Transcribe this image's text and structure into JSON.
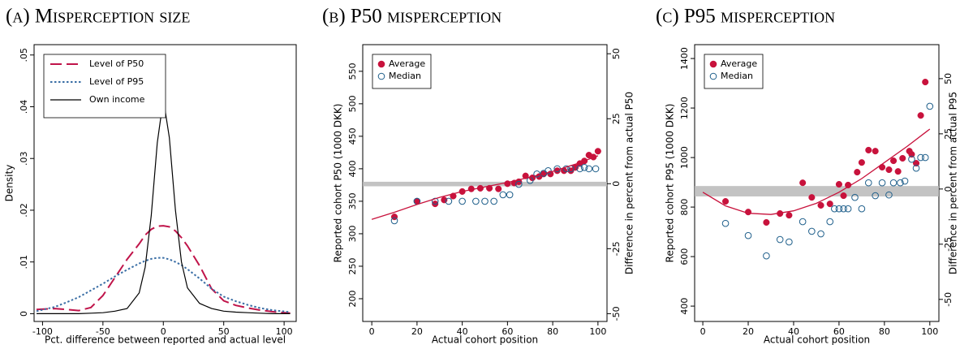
{
  "chart_data": [
    {
      "type": "line",
      "title": "(a) Misperception size",
      "xlabel": "Pct. difference between reported and actual level",
      "ylabel": "Density",
      "x": [
        -105,
        -90,
        -80,
        -70,
        -60,
        -50,
        -40,
        -30,
        -20,
        -15,
        -10,
        -5,
        0,
        5,
        10,
        15,
        20,
        30,
        40,
        50,
        60,
        70,
        80,
        90,
        105
      ],
      "series": [
        {
          "name": "Level of P50",
          "color": "#c0144a",
          "style": "long-dash",
          "values": [
            0.0008,
            0.001,
            0.0008,
            0.0006,
            0.0012,
            0.0035,
            0.007,
            0.0105,
            0.0135,
            0.0152,
            0.0163,
            0.0169,
            0.017,
            0.0168,
            0.016,
            0.0147,
            0.0131,
            0.0093,
            0.0048,
            0.0025,
            0.0016,
            0.0011,
            0.0007,
            0.0004,
            0.0001
          ]
        },
        {
          "name": "Level of P95",
          "color": "#3a6ea5",
          "style": "dotted",
          "values": [
            0.0005,
            0.0013,
            0.0022,
            0.0032,
            0.0045,
            0.0058,
            0.0072,
            0.0085,
            0.0097,
            0.0102,
            0.0106,
            0.0108,
            0.0108,
            0.0105,
            0.01,
            0.0094,
            0.0086,
            0.0068,
            0.0048,
            0.0033,
            0.0024,
            0.0017,
            0.0011,
            0.0007,
            0.0003
          ]
        },
        {
          "name": "Own income",
          "color": "#000000",
          "style": "solid",
          "values": [
            0,
            0,
            0,
            0,
            0.0001,
            0.0002,
            0.0005,
            0.001,
            0.004,
            0.009,
            0.019,
            0.033,
            0.0415,
            0.034,
            0.02,
            0.01,
            0.005,
            0.002,
            0.001,
            0.0005,
            0.0003,
            0.0002,
            0.0001,
            0,
            0
          ]
        }
      ],
      "xlim": [
        -107,
        110
      ],
      "xticks": [
        -100,
        -50,
        0,
        50,
        100
      ],
      "ylim": [
        -0.0015,
        0.052
      ],
      "yticks": [
        0,
        {
          "value": 0.01,
          "label": ".01"
        },
        {
          "value": 0.02,
          "label": ".02"
        },
        {
          "value": 0.03,
          "label": ".03"
        },
        {
          "value": 0.04,
          "label": ".04"
        },
        {
          "value": 0.05,
          "label": ".05"
        }
      ],
      "legend": "top-left"
    },
    {
      "type": "scatter",
      "title": "(b) P50 misperception",
      "xlabel": "Actual cohort position",
      "ylabel": "Reported cohort P50 (1000 DKK)",
      "y2label": "Difference in percent from actual P50",
      "series": [
        {
          "name": "Average",
          "color": "#c8123c",
          "marker": "filled",
          "x": [
            10,
            20,
            28,
            32,
            36,
            40,
            44,
            48,
            52,
            56,
            60,
            63,
            65,
            68,
            71,
            74,
            76,
            79,
            82,
            85,
            88,
            90,
            92,
            94,
            96,
            98,
            100
          ],
          "values": [
            326,
            350,
            346,
            352,
            358,
            365,
            369,
            370,
            370,
            369,
            377,
            378,
            380,
            389,
            386,
            388,
            392,
            392,
            397,
            397,
            397,
            402,
            408,
            412,
            421,
            418,
            427
          ]
        },
        {
          "name": "Median",
          "color": "#1f5f8b",
          "marker": "hollow",
          "x": [
            10,
            20,
            28,
            34,
            40,
            46,
            50,
            54,
            58,
            61,
            65,
            70,
            73,
            76,
            78,
            82,
            86,
            88,
            92,
            94,
            96,
            99
          ],
          "values": [
            320,
            350,
            350,
            350,
            350,
            350,
            350,
            350,
            360,
            360,
            376,
            382,
            392,
            393,
            397,
            400,
            400,
            400,
            400,
            402,
            400,
            400
          ]
        }
      ],
      "fit": {
        "color": "#c8123c",
        "x": [
          0,
          10,
          20,
          30,
          40,
          50,
          60,
          70,
          80,
          90,
          100
        ],
        "values": [
          322,
          333,
          345,
          356,
          365,
          372,
          379,
          387,
          396,
          407,
          420
        ]
      },
      "reference_band": [
        373,
        380
      ],
      "xlim": [
        -4,
        104
      ],
      "xticks": [
        0,
        20,
        40,
        60,
        80,
        100
      ],
      "ylim": [
        165,
        591
      ],
      "yticks": [
        200,
        250,
        300,
        350,
        400,
        450,
        500,
        550
      ],
      "y2lim": [
        -53,
        53.5
      ],
      "y2ticks": [
        -50,
        -25,
        0,
        25,
        50
      ],
      "legend": "top-left"
    },
    {
      "type": "scatter",
      "title": "(c) P95 misperception",
      "xlabel": "Actual cohort position",
      "ylabel": "Reported cohort P95 (1000 DKK)",
      "y2label": "Difference in percent from actual P95",
      "series": [
        {
          "name": "Average",
          "color": "#c8123c",
          "marker": "filled",
          "x": [
            10,
            20,
            28,
            34,
            38,
            44,
            48,
            52,
            56,
            60,
            62,
            64,
            68,
            70,
            73,
            76,
            79,
            82,
            84,
            86,
            88,
            91,
            92,
            94,
            96,
            98
          ],
          "values": [
            823,
            780,
            738,
            774,
            767,
            898,
            839,
            807,
            813,
            892,
            846,
            889,
            941,
            980,
            1030,
            1026,
            961,
            951,
            987,
            944,
            997,
            1026,
            1013,
            977,
            1170,
            1305
          ]
        },
        {
          "name": "Median",
          "color": "#1f5f8b",
          "marker": "hollow",
          "x": [
            10,
            20,
            28,
            34,
            38,
            44,
            48,
            52,
            56,
            58,
            60,
            62,
            64,
            67,
            70,
            73,
            76,
            79,
            82,
            84,
            87,
            89,
            92,
            94,
            96,
            98,
            100
          ],
          "values": [
            734,
            685,
            603,
            669,
            659,
            741,
            702,
            692,
            741,
            793,
            793,
            793,
            793,
            839,
            793,
            898,
            846,
            898,
            849,
            898,
            898,
            905,
            993,
            957,
            1000,
            1000,
            1207
          ]
        }
      ],
      "fit": {
        "color": "#c8123c",
        "x": [
          0,
          10,
          20,
          30,
          40,
          50,
          60,
          70,
          80,
          90,
          100
        ],
        "values": [
          860,
          805,
          775,
          770,
          785,
          815,
          860,
          915,
          980,
          1045,
          1115
        ]
      },
      "reference_band": [
        843,
        885
      ],
      "xlim": [
        -3.6,
        104
      ],
      "xticks": [
        0,
        20,
        40,
        60,
        80,
        100
      ],
      "ylim": [
        338,
        1456
      ],
      "yticks": [
        400,
        600,
        800,
        1000,
        1200,
        1400
      ],
      "y2lim": [
        -60,
        65.4
      ],
      "y2ticks": [
        -50,
        -25,
        0,
        25,
        50
      ],
      "legend": "top-left"
    }
  ]
}
